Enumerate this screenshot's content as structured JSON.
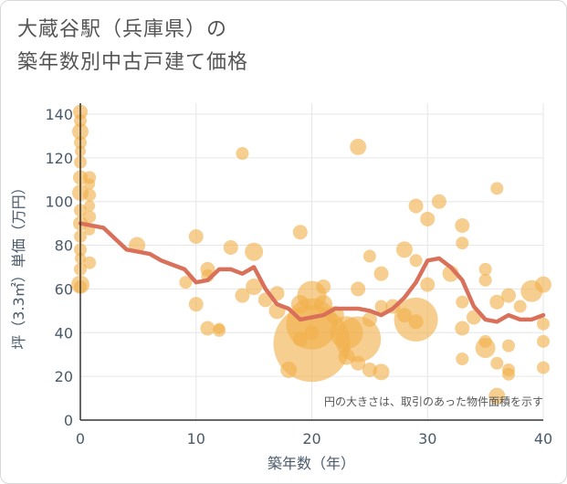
{
  "chart_data": {
    "type": "scatter",
    "title_line1": "大蔵谷駅（兵庫県）の",
    "title_line2": "築年数別中古戸建て価格",
    "xlabel": "築年数（年）",
    "ylabel": "坪（3.3㎡）単価（万円）",
    "xlim": [
      0,
      40
    ],
    "ylim": [
      0,
      145
    ],
    "xticks": [
      0,
      10,
      20,
      30,
      40
    ],
    "yticks": [
      0,
      20,
      40,
      60,
      80,
      100,
      120,
      140
    ],
    "grid": true,
    "note": "円の大きさは、取引のあった物件面積を示す",
    "colors": {
      "bubble": "#f0b04a",
      "trend": "#d9705a",
      "grid": "#e6e6e6",
      "axis": "#333333"
    },
    "points": [
      {
        "x": 0,
        "y": 141,
        "r": 8
      },
      {
        "x": 0,
        "y": 137,
        "r": 7
      },
      {
        "x": 0,
        "y": 132,
        "r": 9
      },
      {
        "x": 0,
        "y": 127,
        "r": 7
      },
      {
        "x": 0,
        "y": 123,
        "r": 6
      },
      {
        "x": 0,
        "y": 118,
        "r": 7
      },
      {
        "x": 0,
        "y": 111,
        "r": 8
      },
      {
        "x": 0,
        "y": 104,
        "r": 9
      },
      {
        "x": 0,
        "y": 96,
        "r": 7
      },
      {
        "x": 0,
        "y": 90,
        "r": 8
      },
      {
        "x": 0,
        "y": 84,
        "r": 7
      },
      {
        "x": 0,
        "y": 78,
        "r": 7
      },
      {
        "x": 0,
        "y": 74,
        "r": 6
      },
      {
        "x": 0,
        "y": 69,
        "r": 7
      },
      {
        "x": 0,
        "y": 62,
        "r": 10
      },
      {
        "x": 0,
        "y": 61,
        "r": 7
      },
      {
        "x": 0.8,
        "y": 111,
        "r": 7
      },
      {
        "x": 0.8,
        "y": 108,
        "r": 6
      },
      {
        "x": 0.8,
        "y": 103,
        "r": 7
      },
      {
        "x": 0.8,
        "y": 98,
        "r": 6
      },
      {
        "x": 0.8,
        "y": 93,
        "r": 7
      },
      {
        "x": 0.8,
        "y": 87,
        "r": 6
      },
      {
        "x": 0.8,
        "y": 72,
        "r": 7
      },
      {
        "x": 4.9,
        "y": 80,
        "r": 9
      },
      {
        "x": 10,
        "y": 84,
        "r": 8
      },
      {
        "x": 9.1,
        "y": 63,
        "r": 7
      },
      {
        "x": 10,
        "y": 53,
        "r": 8
      },
      {
        "x": 11,
        "y": 69,
        "r": 8
      },
      {
        "x": 11,
        "y": 66,
        "r": 7
      },
      {
        "x": 11,
        "y": 42,
        "r": 8
      },
      {
        "x": 12,
        "y": 41,
        "r": 7
      },
      {
        "x": 12,
        "y": 42,
        "r": 6
      },
      {
        "x": 13,
        "y": 79,
        "r": 8
      },
      {
        "x": 14,
        "y": 122,
        "r": 7
      },
      {
        "x": 14,
        "y": 57,
        "r": 8
      },
      {
        "x": 15,
        "y": 77,
        "r": 10
      },
      {
        "x": 15,
        "y": 61,
        "r": 9
      },
      {
        "x": 16,
        "y": 55,
        "r": 8
      },
      {
        "x": 17,
        "y": 58,
        "r": 8
      },
      {
        "x": 17,
        "y": 50,
        "r": 9
      },
      {
        "x": 18,
        "y": 23,
        "r": 9
      },
      {
        "x": 19,
        "y": 86,
        "r": 8
      },
      {
        "x": 19,
        "y": 53,
        "r": 10
      },
      {
        "x": 19,
        "y": 37,
        "r": 8
      },
      {
        "x": 20,
        "y": 57,
        "r": 16
      },
      {
        "x": 20,
        "y": 44,
        "r": 28
      },
      {
        "x": 20,
        "y": 35,
        "r": 42
      },
      {
        "x": 20,
        "y": 40,
        "r": 8
      },
      {
        "x": 21,
        "y": 61,
        "r": 8
      },
      {
        "x": 21,
        "y": 53,
        "r": 10
      },
      {
        "x": 22,
        "y": 48,
        "r": 10
      },
      {
        "x": 23,
        "y": 40,
        "r": 18
      },
      {
        "x": 23,
        "y": 29,
        "r": 9
      },
      {
        "x": 24,
        "y": 125,
        "r": 9
      },
      {
        "x": 24,
        "y": 60,
        "r": 8
      },
      {
        "x": 24,
        "y": 37,
        "r": 25
      },
      {
        "x": 24,
        "y": 26,
        "r": 8
      },
      {
        "x": 25,
        "y": 75,
        "r": 7
      },
      {
        "x": 25,
        "y": 46,
        "r": 8
      },
      {
        "x": 25,
        "y": 23,
        "r": 8
      },
      {
        "x": 26,
        "y": 67,
        "r": 8
      },
      {
        "x": 26,
        "y": 52,
        "r": 7
      },
      {
        "x": 26,
        "y": 22,
        "r": 9
      },
      {
        "x": 27,
        "y": 52,
        "r": 8
      },
      {
        "x": 28,
        "y": 78,
        "r": 9
      },
      {
        "x": 28,
        "y": 48,
        "r": 8
      },
      {
        "x": 29,
        "y": 98,
        "r": 8
      },
      {
        "x": 29,
        "y": 73,
        "r": 7
      },
      {
        "x": 29,
        "y": 46,
        "r": 24
      },
      {
        "x": 29,
        "y": 45,
        "r": 8
      },
      {
        "x": 30,
        "y": 92,
        "r": 8
      },
      {
        "x": 30,
        "y": 62,
        "r": 8
      },
      {
        "x": 31,
        "y": 100,
        "r": 8
      },
      {
        "x": 32,
        "y": 67,
        "r": 9
      },
      {
        "x": 33,
        "y": 89,
        "r": 8
      },
      {
        "x": 33,
        "y": 81,
        "r": 7
      },
      {
        "x": 33,
        "y": 54,
        "r": 7
      },
      {
        "x": 33,
        "y": 42,
        "r": 8
      },
      {
        "x": 33,
        "y": 28,
        "r": 7
      },
      {
        "x": 34,
        "y": 47,
        "r": 8
      },
      {
        "x": 35,
        "y": 69,
        "r": 7
      },
      {
        "x": 35,
        "y": 64,
        "r": 7
      },
      {
        "x": 35,
        "y": 36,
        "r": 7
      },
      {
        "x": 35,
        "y": 33,
        "r": 11
      },
      {
        "x": 36,
        "y": 106,
        "r": 7
      },
      {
        "x": 36,
        "y": 54,
        "r": 8
      },
      {
        "x": 36,
        "y": 26,
        "r": 7
      },
      {
        "x": 36,
        "y": 11,
        "r": 9
      },
      {
        "x": 37,
        "y": 57,
        "r": 8
      },
      {
        "x": 37,
        "y": 34,
        "r": 7
      },
      {
        "x": 37,
        "y": 23,
        "r": 7
      },
      {
        "x": 37,
        "y": 21,
        "r": 7
      },
      {
        "x": 38,
        "y": 52,
        "r": 7
      },
      {
        "x": 39,
        "y": 59,
        "r": 12
      },
      {
        "x": 40,
        "y": 62,
        "r": 9
      },
      {
        "x": 40,
        "y": 44,
        "r": 7
      },
      {
        "x": 40,
        "y": 36,
        "r": 7
      },
      {
        "x": 40,
        "y": 24,
        "r": 7
      }
    ],
    "trend": {
      "name": "trend",
      "x": [
        0,
        2,
        4,
        6,
        7,
        8,
        9,
        10,
        11,
        12,
        13,
        14,
        15,
        16,
        17,
        18,
        19,
        20,
        21,
        22,
        23,
        24,
        25,
        26,
        27,
        28,
        29,
        30,
        31,
        32,
        33,
        34,
        35,
        36,
        37,
        38,
        39,
        40
      ],
      "y": [
        90,
        88,
        78,
        76,
        73,
        71,
        69,
        63,
        64,
        69,
        69,
        67,
        70,
        60,
        53,
        51,
        46,
        47,
        48,
        51,
        51,
        51,
        50,
        48,
        51,
        56,
        63,
        73,
        74,
        70,
        64,
        52,
        46,
        45,
        48,
        46,
        46,
        48
      ]
    }
  }
}
